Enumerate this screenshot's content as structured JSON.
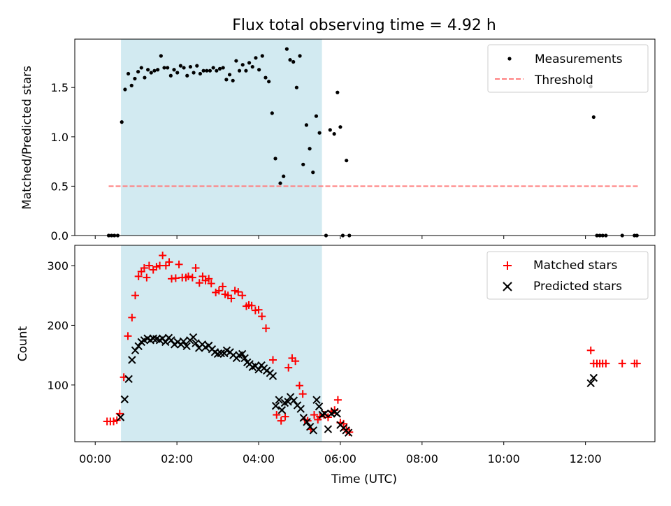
{
  "title": "Flux total observing time = 4.92 h",
  "colors": {
    "shade": "#add8e6",
    "threshold": "#ff7f7f",
    "matched": "#ff0000",
    "predicted": "#000000",
    "measurement": "#000000"
  },
  "chart_data": [
    {
      "type": "scatter",
      "title": "Flux total observing time = 4.92 h",
      "xlabel": "",
      "ylabel": "Matched/Predicted stars",
      "xlim": [
        -0.5,
        13.7
      ],
      "ylim": [
        0,
        1.99
      ],
      "yticks": [
        0.0,
        0.5,
        1.0,
        1.5
      ],
      "ytick_labels": [
        "0.0",
        "0.5",
        "1.0",
        "1.5"
      ],
      "xticks": [
        0,
        2,
        4,
        6,
        8,
        10,
        12
      ],
      "shaded_region": [
        0.63,
        5.55
      ],
      "legend": [
        "Measurements",
        "Threshold"
      ],
      "legend_position": "top-right",
      "threshold": {
        "name": "Threshold",
        "value": 0.5,
        "x_start": 0.33,
        "x_end": 13.3
      },
      "series": [
        {
          "name": "Measurements",
          "points": [
            [
              0.33,
              0
            ],
            [
              0.4,
              0
            ],
            [
              0.47,
              0
            ],
            [
              0.55,
              0
            ],
            [
              0.65,
              1.15
            ],
            [
              0.73,
              1.48
            ],
            [
              0.81,
              1.64
            ],
            [
              0.89,
              1.52
            ],
            [
              0.97,
              1.59
            ],
            [
              1.05,
              1.66
            ],
            [
              1.13,
              1.7
            ],
            [
              1.21,
              1.6
            ],
            [
              1.29,
              1.68
            ],
            [
              1.37,
              1.65
            ],
            [
              1.45,
              1.67
            ],
            [
              1.53,
              1.68
            ],
            [
              1.61,
              1.82
            ],
            [
              1.69,
              1.7
            ],
            [
              1.77,
              1.7
            ],
            [
              1.85,
              1.62
            ],
            [
              1.93,
              1.68
            ],
            [
              2.01,
              1.65
            ],
            [
              2.09,
              1.72
            ],
            [
              2.17,
              1.7
            ],
            [
              2.25,
              1.62
            ],
            [
              2.33,
              1.71
            ],
            [
              2.41,
              1.65
            ],
            [
              2.49,
              1.72
            ],
            [
              2.57,
              1.64
            ],
            [
              2.65,
              1.67
            ],
            [
              2.73,
              1.67
            ],
            [
              2.81,
              1.67
            ],
            [
              2.89,
              1.7
            ],
            [
              2.97,
              1.67
            ],
            [
              3.05,
              1.69
            ],
            [
              3.13,
              1.7
            ],
            [
              3.21,
              1.58
            ],
            [
              3.29,
              1.63
            ],
            [
              3.37,
              1.57
            ],
            [
              3.45,
              1.77
            ],
            [
              3.53,
              1.67
            ],
            [
              3.61,
              1.73
            ],
            [
              3.69,
              1.67
            ],
            [
              3.77,
              1.75
            ],
            [
              3.85,
              1.71
            ],
            [
              3.93,
              1.8
            ],
            [
              4.01,
              1.68
            ],
            [
              4.09,
              1.82
            ],
            [
              4.17,
              1.6
            ],
            [
              4.25,
              1.56
            ],
            [
              4.33,
              1.24
            ],
            [
              4.41,
              0.78
            ],
            [
              4.53,
              0.53
            ],
            [
              4.61,
              0.6
            ],
            [
              4.69,
              1.89
            ],
            [
              4.77,
              1.78
            ],
            [
              4.85,
              1.76
            ],
            [
              4.93,
              1.5
            ],
            [
              5.01,
              1.82
            ],
            [
              5.09,
              0.72
            ],
            [
              5.17,
              1.12
            ],
            [
              5.25,
              0.88
            ],
            [
              5.33,
              0.64
            ],
            [
              5.41,
              1.21
            ],
            [
              5.49,
              1.04
            ],
            [
              5.65,
              0
            ],
            [
              5.75,
              1.07
            ],
            [
              5.85,
              1.03
            ],
            [
              5.93,
              1.45
            ],
            [
              6.0,
              1.1
            ],
            [
              6.06,
              0
            ],
            [
              6.15,
              0.76
            ],
            [
              6.22,
              0
            ],
            [
              12.13,
              1.51
            ],
            [
              12.2,
              1.2
            ],
            [
              12.28,
              0
            ],
            [
              12.35,
              0
            ],
            [
              12.42,
              0
            ],
            [
              12.5,
              0
            ],
            [
              12.9,
              0
            ],
            [
              13.2,
              0
            ],
            [
              13.26,
              0
            ]
          ]
        }
      ]
    },
    {
      "type": "scatter",
      "title": "",
      "xlabel": "Time (UTC)",
      "ylabel": "Count",
      "xlim": [
        -0.5,
        13.7
      ],
      "ylim": [
        5,
        334
      ],
      "yticks": [
        100,
        200,
        300
      ],
      "ytick_labels": [
        "100",
        "200",
        "300"
      ],
      "xticks": [
        0,
        2,
        4,
        6,
        8,
        10,
        12
      ],
      "xtick_labels": [
        "00:00",
        "02:00",
        "04:00",
        "06:00",
        "08:00",
        "10:00",
        "12:00"
      ],
      "shaded_region": [
        0.63,
        5.55
      ],
      "legend": [
        "Matched stars",
        "Predicted stars"
      ],
      "legend_position": "top-right",
      "series": [
        {
          "name": "Matched stars",
          "marker": "+",
          "points": [
            [
              0.29,
              39
            ],
            [
              0.37,
              39
            ],
            [
              0.45,
              39
            ],
            [
              0.53,
              41
            ],
            [
              0.6,
              52
            ],
            [
              0.7,
              113
            ],
            [
              0.8,
              182
            ],
            [
              0.9,
              213
            ],
            [
              0.98,
              250
            ],
            [
              1.06,
              282
            ],
            [
              1.13,
              290
            ],
            [
              1.2,
              296
            ],
            [
              1.26,
              280
            ],
            [
              1.32,
              300
            ],
            [
              1.42,
              293
            ],
            [
              1.5,
              298
            ],
            [
              1.58,
              300
            ],
            [
              1.65,
              317
            ],
            [
              1.73,
              300
            ],
            [
              1.81,
              306
            ],
            [
              1.87,
              278
            ],
            [
              1.97,
              279
            ],
            [
              2.05,
              302
            ],
            [
              2.13,
              280
            ],
            [
              2.22,
              280
            ],
            [
              2.28,
              282
            ],
            [
              2.38,
              280
            ],
            [
              2.46,
              296
            ],
            [
              2.55,
              271
            ],
            [
              2.63,
              282
            ],
            [
              2.7,
              275
            ],
            [
              2.78,
              278
            ],
            [
              2.84,
              270
            ],
            [
              2.95,
              255
            ],
            [
              3.03,
              258
            ],
            [
              3.12,
              265
            ],
            [
              3.18,
              252
            ],
            [
              3.25,
              250
            ],
            [
              3.33,
              245
            ],
            [
              3.42,
              258
            ],
            [
              3.5,
              256
            ],
            [
              3.6,
              250
            ],
            [
              3.7,
              232
            ],
            [
              3.76,
              234
            ],
            [
              3.83,
              233
            ],
            [
              3.92,
              225
            ],
            [
              4.0,
              226
            ],
            [
              4.08,
              215
            ],
            [
              4.18,
              195
            ],
            [
              4.35,
              142
            ],
            [
              4.44,
              50
            ],
            [
              4.55,
              40
            ],
            [
              4.65,
              47
            ],
            [
              4.73,
              129
            ],
            [
              4.82,
              145
            ],
            [
              4.9,
              140
            ],
            [
              5.0,
              99
            ],
            [
              5.08,
              85
            ],
            [
              5.13,
              42
            ],
            [
              5.2,
              40
            ],
            [
              5.28,
              26
            ],
            [
              5.36,
              50
            ],
            [
              5.45,
              42
            ],
            [
              5.5,
              47
            ],
            [
              5.6,
              50
            ],
            [
              5.7,
              46
            ],
            [
              5.78,
              56
            ],
            [
              5.86,
              58
            ],
            [
              5.94,
              75
            ],
            [
              6.0,
              37
            ],
            [
              6.08,
              35
            ],
            [
              6.15,
              25
            ],
            [
              6.22,
              21
            ],
            [
              12.13,
              158
            ],
            [
              12.2,
              136
            ],
            [
              12.28,
              136
            ],
            [
              12.35,
              136
            ],
            [
              12.42,
              136
            ],
            [
              12.5,
              136
            ],
            [
              12.9,
              136
            ],
            [
              13.2,
              136
            ],
            [
              13.26,
              136
            ]
          ]
        },
        {
          "name": "Predicted stars",
          "marker": "x",
          "points": [
            [
              0.62,
              46
            ],
            [
              0.72,
              76
            ],
            [
              0.82,
              110
            ],
            [
              0.9,
              142
            ],
            [
              0.98,
              158
            ],
            [
              1.06,
              165
            ],
            [
              1.13,
              172
            ],
            [
              1.2,
              175
            ],
            [
              1.28,
              178
            ],
            [
              1.35,
              175
            ],
            [
              1.42,
              178
            ],
            [
              1.5,
              177
            ],
            [
              1.58,
              175
            ],
            [
              1.65,
              178
            ],
            [
              1.72,
              172
            ],
            [
              1.8,
              179
            ],
            [
              1.86,
              175
            ],
            [
              1.94,
              168
            ],
            [
              2.02,
              172
            ],
            [
              2.1,
              168
            ],
            [
              2.16,
              173
            ],
            [
              2.24,
              165
            ],
            [
              2.32,
              175
            ],
            [
              2.4,
              180
            ],
            [
              2.46,
              170
            ],
            [
              2.54,
              162
            ],
            [
              2.62,
              168
            ],
            [
              2.7,
              163
            ],
            [
              2.78,
              166
            ],
            [
              2.86,
              160
            ],
            [
              2.93,
              155
            ],
            [
              3.0,
              152
            ],
            [
              3.08,
              153
            ],
            [
              3.16,
              153
            ],
            [
              3.22,
              158
            ],
            [
              3.3,
              155
            ],
            [
              3.38,
              150
            ],
            [
              3.46,
              145
            ],
            [
              3.52,
              150
            ],
            [
              3.6,
              152
            ],
            [
              3.66,
              145
            ],
            [
              3.72,
              138
            ],
            [
              3.78,
              135
            ],
            [
              3.85,
              130
            ],
            [
              3.92,
              132
            ],
            [
              4.0,
              126
            ],
            [
              4.07,
              133
            ],
            [
              4.13,
              128
            ],
            [
              4.2,
              124
            ],
            [
              4.28,
              120
            ],
            [
              4.35,
              115
            ],
            [
              4.42,
              65
            ],
            [
              4.5,
              75
            ],
            [
              4.57,
              58
            ],
            [
              4.64,
              70
            ],
            [
              4.72,
              72
            ],
            [
              4.78,
              80
            ],
            [
              4.86,
              74
            ],
            [
              4.95,
              66
            ],
            [
              5.03,
              60
            ],
            [
              5.1,
              45
            ],
            [
              5.18,
              38
            ],
            [
              5.26,
              30
            ],
            [
              5.34,
              24
            ],
            [
              5.42,
              75
            ],
            [
              5.48,
              64
            ],
            [
              5.56,
              50
            ],
            [
              5.62,
              52
            ],
            [
              5.7,
              26
            ],
            [
              5.78,
              52
            ],
            [
              5.86,
              55
            ],
            [
              5.92,
              52
            ],
            [
              6.0,
              33
            ],
            [
              6.08,
              28
            ],
            [
              6.14,
              24
            ],
            [
              6.2,
              20
            ],
            [
              12.13,
              103
            ],
            [
              12.2,
              112
            ]
          ]
        }
      ]
    }
  ]
}
